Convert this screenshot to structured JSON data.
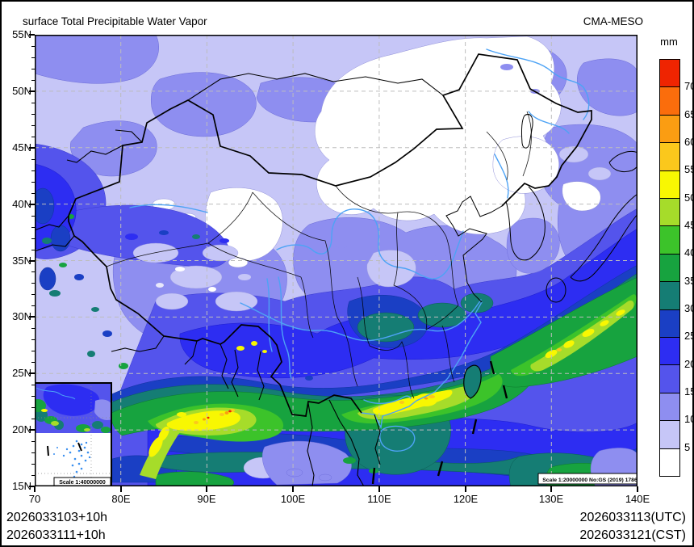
{
  "header": {
    "title": "surface Total Precipitable Water Vapor",
    "model": "CMA-MESO"
  },
  "colorbar": {
    "unit": "mm",
    "labels": [
      "70",
      "65",
      "60",
      "55",
      "50",
      "45",
      "40",
      "35",
      "30",
      "25",
      "20",
      "15",
      "10",
      "5"
    ],
    "colors": [
      "#ef2401",
      "#fb6d0c",
      "#fb9d12",
      "#fbc81c",
      "#f8f702",
      "#a6dc2a",
      "#3cc32a",
      "#17a33f",
      "#157d74",
      "#1a3fc4",
      "#2d2df2",
      "#5454ec",
      "#8e8ef0",
      "#c6c6f7",
      "#ffffff"
    ],
    "ranges": [
      "> 70",
      "65-70",
      "60-65",
      "55-60",
      "50-55",
      "45-50",
      "40-45",
      "35-40",
      "30-35",
      "25-30",
      "20-25",
      "15-20",
      "10-15",
      "5-10",
      "< 5"
    ]
  },
  "axes": {
    "lat_ticks": [
      "55N",
      "50N",
      "45N",
      "40N",
      "35N",
      "30N",
      "25N",
      "20N",
      "15N"
    ],
    "lon_ticks": [
      "70",
      "80E",
      "90E",
      "100E",
      "110E",
      "120E",
      "130E",
      "140E"
    ]
  },
  "map": {
    "scale_note_main": "Scale 1:20000000 No:GS (2019) 1786",
    "scale_note_inset": "Scale 1:40000000",
    "palette": {
      "river_blue": "#4da3f5",
      "border_black": "#000000",
      "gridline_gray": "#bdbdbd",
      "background_low": "#c6c6f7"
    }
  },
  "footer": {
    "left_line1": "2026033103+10h",
    "left_line2": "2026033111+10h",
    "right_line1": "2026033113(UTC)",
    "right_line2": "2026033121(CST)"
  }
}
